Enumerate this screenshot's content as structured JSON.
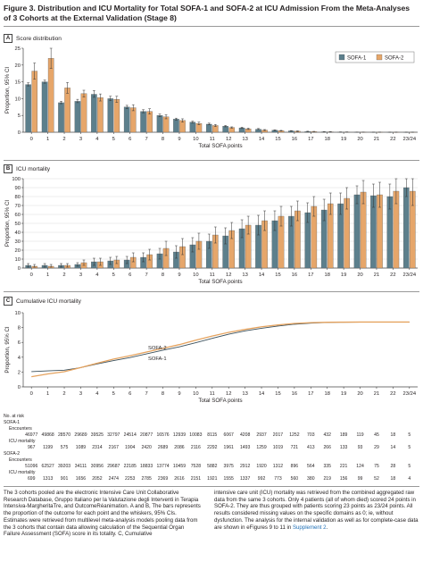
{
  "title": "Figure 3. Distribution and ICU Mortality for Total SOFA-1 and SOFA-2 at ICU Admission From the Meta-Analyses of 3 Cohorts at the External Validation (Stage 8)",
  "panels": {
    "a": {
      "letter": "A",
      "label": "Score distribution"
    },
    "b": {
      "letter": "B",
      "label": "ICU mortality"
    },
    "c": {
      "letter": "C",
      "label": "Cumulative ICU mortality"
    }
  },
  "colors": {
    "sofa1": "#5c7f8c",
    "sofa2": "#e6a66a",
    "line1": "#3a4f5a",
    "line2": "#e5a35f"
  },
  "at_risk": {
    "heading": "No. at risk",
    "sofa1_label": "SOFA-1",
    "sofa2_label": "SOFA-2",
    "encounters_label": "Encounters",
    "mortality_label": "ICU mortality",
    "sofa1_encounters": [
      "46977",
      "49868",
      "28570",
      "29689",
      "39525",
      "32797",
      "24514",
      "20877",
      "16576",
      "12939",
      "10083",
      "8115",
      "6067",
      "4208",
      "2937",
      "2017",
      "1252",
      "703",
      "432",
      "189",
      "119",
      "45",
      "18",
      "5"
    ],
    "sofa1_mortality": [
      "967",
      "1199",
      "575",
      "1089",
      "2314",
      "2167",
      "1904",
      "2420",
      "2689",
      "2086",
      "2116",
      "2292",
      "1961",
      "1493",
      "1259",
      "1019",
      "721",
      "413",
      "266",
      "133",
      "93",
      "29",
      "14",
      "5"
    ],
    "sofa2_encounters": [
      "51096",
      "62527",
      "39203",
      "34111",
      "30956",
      "29687",
      "22185",
      "18833",
      "13774",
      "10459",
      "7528",
      "5882",
      "3975",
      "2912",
      "1920",
      "1312",
      "896",
      "564",
      "335",
      "221",
      "124",
      "75",
      "28",
      "5"
    ],
    "sofa2_mortality": [
      "699",
      "1313",
      "901",
      "1656",
      "2052",
      "2474",
      "2253",
      "2785",
      "2369",
      "2616",
      "2151",
      "1921",
      "1555",
      "1337",
      "992",
      "773",
      "560",
      "380",
      "219",
      "156",
      "99",
      "52",
      "18",
      "4"
    ]
  },
  "caption_left": "The 3 cohorts pooled are the electronic Intensive Care Unit Collaborative Research Database, Gruppo Italiano per la Valutazione degli Interventi in Terapia Intensiva-MargheritaTre, and OutcomeRéanimation. A and B, The bars represents the proportion of the outcome for each point and the whiskers, 95% CIs. Estimates were retrieved from multilevel meta-analysis models pooling data from the 3 cohorts that contain data allowing calculation of the Sequential Organ Failure Assessment (SOFA) score in its totality. C, Cumulative",
  "caption_right_main": "intensive care unit (ICU) mortality was retrieved from the combined aggregated raw data from the same 3 cohorts. Only 4 patients (all of whom died) scored 24 points in SOFA-2. They are thus grouped with patients scoring 23 points as 23/24 points. All results considered missing values on the specific domains as 0; ie, without dysfunction. The analysis for the internal validation as well as for complete-case data are shown in eFigures 9 to 11 in ",
  "caption_right_link": "Supplement 2",
  "caption_right_end": ".",
  "chart_data": [
    {
      "type": "bar",
      "title": "Score distribution",
      "xlabel": "Total SOFA points",
      "ylabel": "Proportion, 95% CI",
      "ylim": [
        0,
        25
      ],
      "yticks": [
        0,
        5,
        10,
        15,
        20,
        25
      ],
      "categories": [
        "0",
        "1",
        "2",
        "3",
        "4",
        "5",
        "6",
        "7",
        "8",
        "9",
        "10",
        "11",
        "12",
        "13",
        "14",
        "15",
        "16",
        "17",
        "18",
        "19",
        "20",
        "21",
        "22",
        "23/24"
      ],
      "legend_position": "top-right",
      "series": [
        {
          "name": "SOFA-1",
          "values": [
            14.2,
            15.0,
            8.8,
            9.2,
            11.3,
            10.0,
            7.5,
            6.2,
            5.0,
            3.9,
            3.0,
            2.4,
            1.8,
            1.3,
            0.9,
            0.6,
            0.4,
            0.2,
            0.12,
            0.06,
            0.035,
            0.013,
            0.005,
            0.002
          ],
          "ci_low": [
            13.8,
            14.6,
            8.5,
            8.8,
            10.4,
            9.4,
            7.0,
            5.8,
            4.6,
            3.6,
            2.7,
            2.2,
            1.6,
            1.1,
            0.8,
            0.5,
            0.3,
            0.15,
            0.08,
            0.03,
            0.02,
            0.005,
            0.001,
            0.0
          ],
          "ci_high": [
            14.7,
            15.5,
            9.2,
            9.8,
            12.4,
            10.7,
            8.0,
            6.7,
            5.4,
            4.2,
            3.3,
            2.7,
            2.0,
            1.5,
            1.1,
            0.7,
            0.5,
            0.3,
            0.17,
            0.1,
            0.06,
            0.03,
            0.01,
            0.005
          ]
        },
        {
          "name": "SOFA-2",
          "values": [
            18.2,
            22.0,
            13.2,
            11.5,
            10.3,
            9.8,
            7.3,
            6.2,
            4.6,
            3.5,
            2.6,
            2.0,
            1.4,
            1.0,
            0.65,
            0.45,
            0.3,
            0.2,
            0.12,
            0.07,
            0.04,
            0.025,
            0.01,
            0.002
          ],
          "ci_low": [
            15.8,
            19.0,
            11.6,
            10.5,
            9.3,
            8.9,
            6.4,
            5.4,
            4.0,
            3.0,
            2.2,
            1.7,
            1.2,
            0.8,
            0.5,
            0.35,
            0.2,
            0.14,
            0.08,
            0.04,
            0.02,
            0.01,
            0.003,
            0.0
          ],
          "ci_high": [
            20.6,
            25.0,
            14.8,
            12.5,
            11.4,
            10.7,
            8.2,
            7.0,
            5.2,
            4.0,
            3.0,
            2.3,
            1.6,
            1.2,
            0.8,
            0.55,
            0.4,
            0.26,
            0.16,
            0.1,
            0.06,
            0.04,
            0.02,
            0.006
          ]
        }
      ]
    },
    {
      "type": "bar",
      "title": "ICU mortality",
      "xlabel": "Total SOFA points",
      "ylabel": "Proportion, 95% CI",
      "ylim": [
        0,
        100
      ],
      "yticks": [
        0,
        10,
        20,
        30,
        40,
        50,
        60,
        70,
        80,
        90,
        100
      ],
      "categories": [
        "0",
        "1",
        "2",
        "3",
        "4",
        "5",
        "6",
        "7",
        "8",
        "9",
        "10",
        "11",
        "12",
        "13",
        "14",
        "15",
        "16",
        "17",
        "18",
        "19",
        "20",
        "21",
        "22",
        "23/24"
      ],
      "series": [
        {
          "name": "SOFA-1",
          "values": [
            3,
            3,
            3,
            4,
            7,
            8,
            9,
            12,
            16,
            18,
            26,
            30,
            36,
            44,
            48,
            53,
            58,
            62,
            65,
            72,
            82,
            81,
            80,
            90
          ],
          "ci_low": [
            1,
            1,
            1,
            2,
            3,
            4,
            5,
            7,
            10,
            11,
            18,
            22,
            27,
            34,
            37,
            42,
            47,
            51,
            53,
            60,
            72,
            68,
            66,
            80
          ],
          "ci_high": [
            5,
            5,
            5,
            6,
            11,
            12,
            13,
            17,
            22,
            25,
            34,
            38,
            45,
            54,
            59,
            64,
            69,
            73,
            77,
            84,
            92,
            94,
            94,
            100
          ]
        },
        {
          "name": "SOFA-2",
          "values": [
            2,
            2,
            3,
            6,
            7,
            9,
            12,
            15,
            22,
            24,
            30,
            37,
            42,
            48,
            53,
            58,
            64,
            69,
            72,
            78,
            85,
            82,
            86,
            86
          ],
          "ci_low": [
            1,
            1,
            1,
            3,
            3,
            5,
            7,
            9,
            14,
            15,
            21,
            28,
            33,
            38,
            42,
            47,
            53,
            58,
            60,
            66,
            72,
            68,
            72,
            70
          ],
          "ci_high": [
            4,
            4,
            5,
            9,
            11,
            13,
            17,
            21,
            30,
            33,
            39,
            46,
            51,
            58,
            64,
            69,
            75,
            80,
            84,
            90,
            98,
            96,
            100,
            100
          ]
        }
      ]
    },
    {
      "type": "line",
      "title": "Cumulative ICU mortality",
      "xlabel": "Total SOFA points",
      "ylabel": "Proportion, 95% CI",
      "ylim": [
        0,
        10
      ],
      "yticks": [
        0,
        2,
        4,
        6,
        8,
        10
      ],
      "categories": [
        "0",
        "1",
        "2",
        "3",
        "4",
        "5",
        "6",
        "7",
        "8",
        "9",
        "10",
        "11",
        "12",
        "13",
        "14",
        "15",
        "16",
        "17",
        "18",
        "19",
        "20",
        "21",
        "22",
        "23/24"
      ],
      "series": [
        {
          "name": "SOFA-1",
          "values": [
            2.06,
            2.16,
            2.25,
            2.6,
            3.1,
            3.55,
            3.95,
            4.45,
            4.95,
            5.4,
            5.95,
            6.55,
            7.1,
            7.55,
            7.9,
            8.2,
            8.45,
            8.6,
            8.68,
            8.72,
            8.73,
            8.74,
            8.74,
            8.74
          ]
        },
        {
          "name": "SOFA-2",
          "values": [
            1.37,
            1.75,
            2.05,
            2.6,
            3.2,
            3.75,
            4.2,
            4.7,
            5.2,
            5.7,
            6.3,
            6.85,
            7.35,
            7.75,
            8.1,
            8.35,
            8.55,
            8.66,
            8.71,
            8.73,
            8.74,
            8.74,
            8.74,
            8.74
          ]
        }
      ]
    }
  ]
}
